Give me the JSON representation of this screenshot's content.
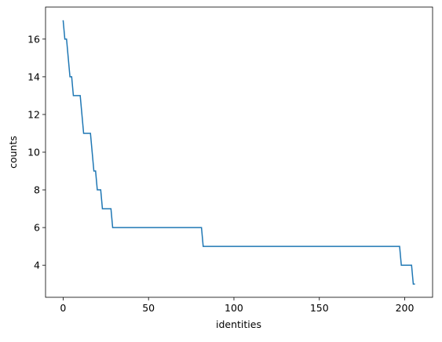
{
  "chart_data": {
    "type": "line",
    "x_label": "identities",
    "y_label": "counts",
    "x": [
      0,
      1,
      2,
      3,
      4,
      5,
      6,
      10,
      11,
      12,
      16,
      17,
      18,
      19,
      20,
      21,
      22,
      23,
      28,
      29,
      81,
      82,
      197,
      198,
      204,
      205,
      206
    ],
    "series": [
      {
        "color": "#1f77b4",
        "values": [
          17,
          16,
          16,
          15,
          14,
          14,
          13,
          13,
          12,
          11,
          11,
          10,
          9,
          9,
          8,
          8,
          8,
          7,
          7,
          6,
          6,
          5,
          5,
          4,
          4,
          3,
          3
        ]
      }
    ],
    "xlim": [
      -10.3,
      216.3
    ],
    "xticks": [
      0,
      50,
      100,
      150,
      200
    ],
    "ylim": [
      2.3,
      17.7
    ],
    "yticks": [
      4,
      6,
      8,
      10,
      12,
      14,
      16
    ]
  }
}
